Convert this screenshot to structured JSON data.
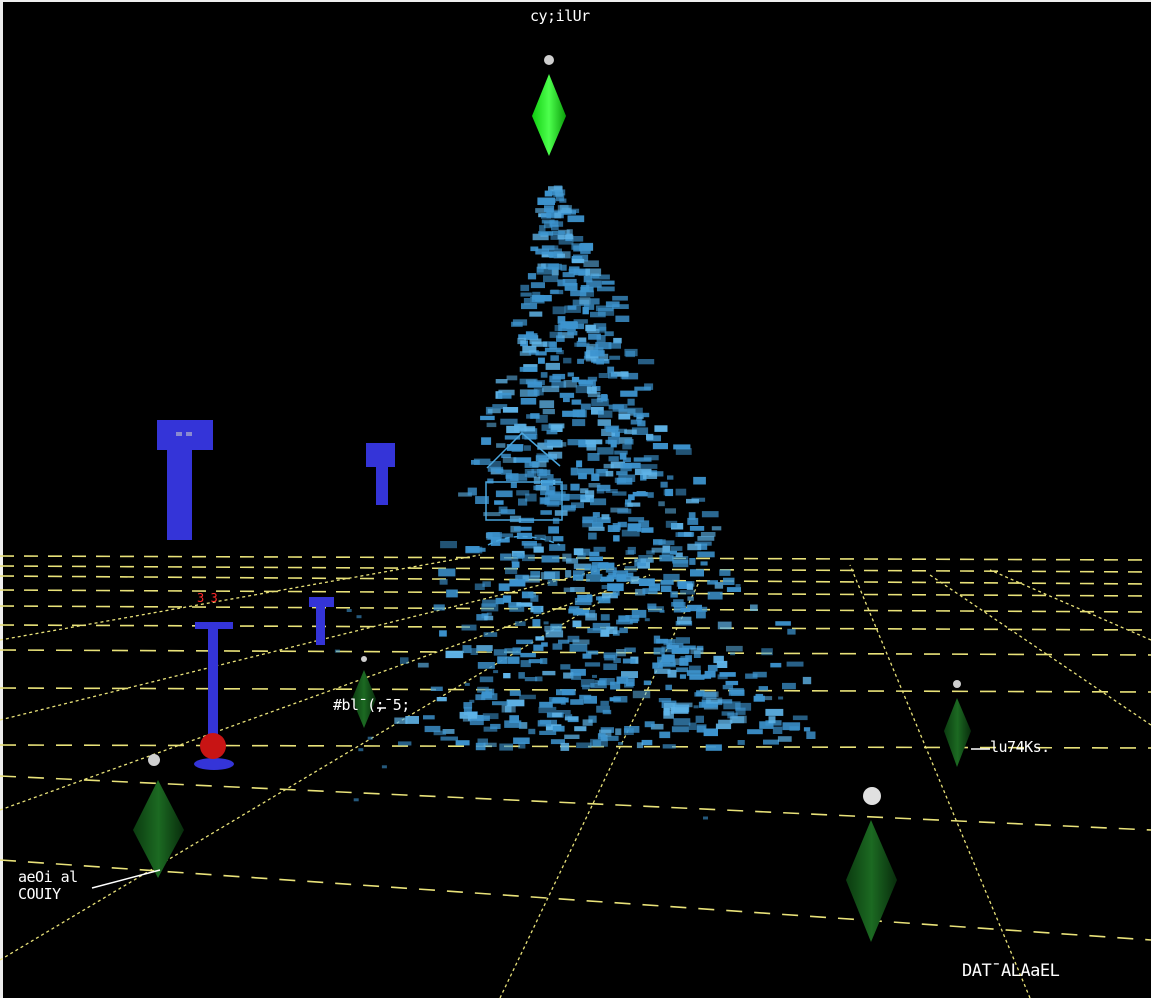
{
  "colors": {
    "background": "#000000",
    "grid": "#e9e279",
    "cloud": "#3d94cf",
    "cloud_light": "#5fb4e8",
    "marker_bright": "#19f019",
    "marker_dark": "#0d4a12",
    "probe": "#3a3ad8",
    "probe_ball": "#d41818",
    "node_ball": "#d0d0d0"
  },
  "labels": {
    "top": "cy;ilUr",
    "mid_left": "#bl¯(;¯5;",
    "right": "lu74Ks.",
    "left_bottom_1": "aeOi al",
    "left_bottom_2": "COUIY",
    "bottom_right": "DAT¯ALAaEL",
    "probe_value": "3 3"
  },
  "icons": [
    "diamond-marker-icon",
    "probe-icon",
    "sphere-icon",
    "camera-frustum-icon"
  ]
}
